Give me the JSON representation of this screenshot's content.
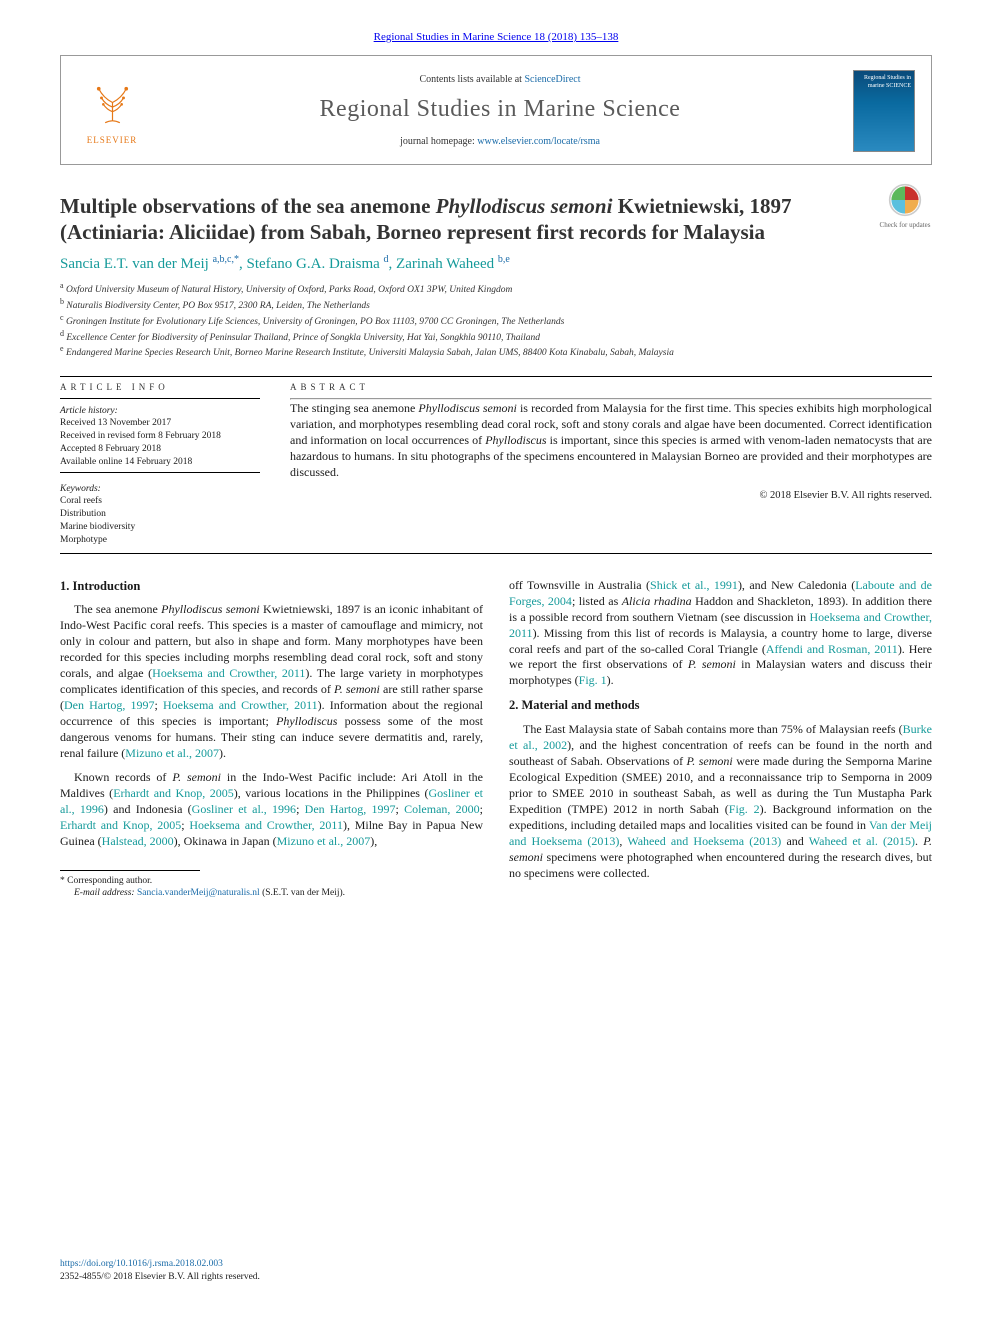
{
  "colors": {
    "link_blue": "#1a6ba8",
    "author_teal": "#159a9a",
    "elsevier_orange": "#e67817",
    "text": "#1a1a1a",
    "masthead_gray": "#5a5a5a"
  },
  "typography": {
    "title_fontsize_pt": 21,
    "journal_name_fontsize_pt": 24,
    "body_fontsize_pt": 12,
    "info_fontsize_pt": 10,
    "affiliation_fontsize_pt": 9.5,
    "footnote_fontsize_pt": 9.5
  },
  "header": {
    "journal_ref": "Regional Studies in Marine Science 18 (2018) 135–138",
    "contents_prefix": "Contents lists available at ",
    "contents_link": "ScienceDirect",
    "journal_name": "Regional Studies in Marine Science",
    "homepage_prefix": "journal homepage: ",
    "homepage_url": "www.elsevier.com/locate/rsma",
    "publisher_logo_label": "ELSEVIER",
    "cover_thumb_text": "Regional Studies in marine SCIENCE"
  },
  "updates_badge": "Check for updates",
  "title_parts": {
    "pre": "Multiple observations of the sea anemone ",
    "species": "Phyllodiscus semoni",
    "post": " Kwietniewski, 1897 (Actiniaria: Aliciidae) from Sabah, Borneo represent first records for Malaysia"
  },
  "authors_line": {
    "a1_name": "Sancia E.T. van der Meij",
    "a1_aff": "a,b,c,",
    "a1_star": "*",
    "a2_name": "Stefano G.A. Draisma",
    "a2_aff": "d",
    "a3_name": "Zarinah Waheed",
    "a3_aff": "b,e"
  },
  "affiliations": {
    "a": "Oxford University Museum of Natural History, University of Oxford, Parks Road, Oxford OX1 3PW, United Kingdom",
    "b": "Naturalis Biodiversity Center, PO Box 9517, 2300 RA, Leiden, The Netherlands",
    "c": "Groningen Institute for Evolutionary Life Sciences, University of Groningen, PO Box 11103, 9700 CC Groningen, The Netherlands",
    "d": "Excellence Center for Biodiversity of Peninsular Thailand, Prince of Songkla University, Hat Yai, Songkhla 90110, Thailand",
    "e": "Endangered Marine Species Research Unit, Borneo Marine Research Institute, Universiti Malaysia Sabah, Jalan UMS, 88400 Kota Kinabalu, Sabah, Malaysia"
  },
  "info": {
    "article_info_label": "article info",
    "abstract_label": "abstract",
    "history_label": "Article history:",
    "history_lines": [
      "Received 13 November 2017",
      "Received in revised form 8 February 2018",
      "Accepted 8 February 2018",
      "Available online 14 February 2018"
    ],
    "keywords_label": "Keywords:",
    "keywords": [
      "Coral reefs",
      "Distribution",
      "Marine biodiversity",
      "Morphotype"
    ]
  },
  "abstract": {
    "html": "The stinging sea anemone <span class=\"italic\">Phyllodiscus semoni</span> is recorded from Malaysia for the first time. This species exhibits high morphological variation, and morphotypes resembling dead coral rock, soft and stony corals and algae have been documented. Correct identification and information on local occurrences of <span class=\"italic\">Phyllodiscus</span> is important, since this species is armed with venom-laden nematocysts that are hazardous to humans. In situ photographs of the specimens encountered in Malaysian Borneo are provided and their morphotypes are discussed.",
    "copyright": "© 2018 Elsevier B.V. All rights reserved."
  },
  "sections": {
    "intro_heading": "1. Introduction",
    "methods_heading": "2. Material and methods",
    "intro_p1_html": "The sea anemone <span class=\"italic\">Phyllodiscus semoni</span> Kwietniewski, 1897 is an iconic inhabitant of Indo-West Pacific coral reefs. This species is a master of camouflage and mimicry, not only in colour and pattern, but also in shape and form. Many morphotypes have been recorded for this species including morphs resembling dead coral rock, soft and stony corals, and algae (<a href=\"#\" data-name=\"ref-link\" data-interactable=\"true\">Hoeksema and Crowther, 2011</a>). The large variety in morphotypes complicates identification of this species, and records of <span class=\"italic\">P. semoni</span> are still rather sparse (<a href=\"#\" data-name=\"ref-link\" data-interactable=\"true\">Den Hartog, 1997</a>; <a href=\"#\" data-name=\"ref-link\" data-interactable=\"true\">Hoeksema and Crowther, 2011</a>). Information about the regional occurrence of this species is important; <span class=\"italic\">Phyllodiscus</span> possess some of the most dangerous venoms for humans. Their sting can induce severe dermatitis and, rarely, renal failure (<a href=\"#\" data-name=\"ref-link\" data-interactable=\"true\">Mizuno et al., 2007</a>).",
    "intro_p2_html": "Known records of <span class=\"italic\">P. semoni</span> in the Indo-West Pacific include: Ari Atoll in the Maldives (<a href=\"#\" data-name=\"ref-link\" data-interactable=\"true\">Erhardt and Knop, 2005</a>), various locations in the Philippines (<a href=\"#\" data-name=\"ref-link\" data-interactable=\"true\">Gosliner et al., 1996</a>) and Indonesia (<a href=\"#\" data-name=\"ref-link\" data-interactable=\"true\">Gosliner et al., 1996</a>; <a href=\"#\" data-name=\"ref-link\" data-interactable=\"true\">Den Hartog, 1997</a>; <a href=\"#\" data-name=\"ref-link\" data-interactable=\"true\">Coleman, 2000</a>; <a href=\"#\" data-name=\"ref-link\" data-interactable=\"true\">Erhardt and Knop, 2005</a>; <a href=\"#\" data-name=\"ref-link\" data-interactable=\"true\">Hoeksema and Crowther, 2011</a>), Milne Bay in Papua New Guinea (<a href=\"#\" data-name=\"ref-link\" data-interactable=\"true\">Halstead, 2000</a>), Okinawa in Japan (<a href=\"#\" data-name=\"ref-link\" data-interactable=\"true\">Mizuno et al., 2007</a>),",
    "intro_p3_html": "off Townsville in Australia (<a href=\"#\" data-name=\"ref-link\" data-interactable=\"true\">Shick et al., 1991</a>), and New Caledonia (<a href=\"#\" data-name=\"ref-link\" data-interactable=\"true\">Laboute and de Forges, 2004</a>; listed as <span class=\"italic\">Alicia rhadina</span> Haddon and Shackleton, 1893). In addition there is a possible record from southern Vietnam (see discussion in <a href=\"#\" data-name=\"ref-link\" data-interactable=\"true\">Hoeksema and Crowther, 2011</a>). Missing from this list of records is Malaysia, a country home to large, diverse coral reefs and part of the so-called Coral Triangle (<a href=\"#\" data-name=\"ref-link\" data-interactable=\"true\">Affendi and Rosman, 2011</a>). Here we report the first observations of <span class=\"italic\">P. semoni</span> in Malaysian waters and discuss their morphotypes (<a href=\"#\" data-name=\"ref-link\" data-interactable=\"true\">Fig. 1</a>).",
    "methods_p1_html": "The East Malaysia state of Sabah contains more than 75% of Malaysian reefs (<a href=\"#\" data-name=\"ref-link\" data-interactable=\"true\">Burke et al., 2002</a>), and the highest concentration of reefs can be found in the north and southeast of Sabah. Observations of <span class=\"italic\">P. semoni</span> were made during the Semporna Marine Ecological Expedition (SMEE) 2010, and a reconnaissance trip to Semporna in 2009 prior to SMEE 2010 in southeast Sabah, as well as during the Tun Mustapha Park Expedition (TMPE) 2012 in north Sabah (<a href=\"#\" data-name=\"ref-link\" data-interactable=\"true\">Fig. 2</a>). Background information on the expeditions, including detailed maps and localities visited can be found in <a href=\"#\" data-name=\"ref-link\" data-interactable=\"true\">Van der Meij and Hoeksema (2013)</a>, <a href=\"#\" data-name=\"ref-link\" data-interactable=\"true\">Waheed and Hoeksema (2013)</a> and <a href=\"#\" data-name=\"ref-link\" data-interactable=\"true\">Waheed et al. (2015)</a>. <span class=\"italic\">P. semoni</span> specimens were photographed when encountered during the research dives, but no specimens were collected."
  },
  "footnotes": {
    "corr_label": "Corresponding author.",
    "email_label": "E-mail address:",
    "email": "Sancia.vanderMeij@naturalis.nl",
    "email_attr": " (S.E.T. van der Meij)."
  },
  "doi_block": {
    "doi_url": "https://doi.org/10.1016/j.rsma.2018.02.003",
    "issn_line": "2352-4855/© 2018 Elsevier B.V. All rights reserved."
  }
}
